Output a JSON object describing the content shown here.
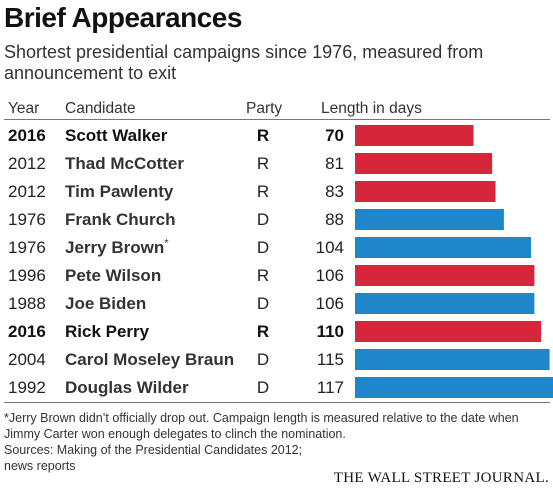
{
  "title": "Brief Appearances",
  "subtitle": "Shortest presidential campaigns since 1976, measured from announcement to exit",
  "headers": {
    "year": "Year",
    "candidate": "Candidate",
    "party": "Party",
    "length": "Length in days"
  },
  "colors": {
    "R": "#d6263b",
    "D": "#1f87c9"
  },
  "chart_data": {
    "type": "bar",
    "orientation": "horizontal",
    "categories": [
      "Scott Walker",
      "Thad McCotter",
      "Tim Pawlenty",
      "Frank Church",
      "Jerry Brown",
      "Pete Wilson",
      "Joe Biden",
      "Rick Perry",
      "Carol Moseley Braun",
      "Douglas Wilder"
    ],
    "values": [
      70,
      81,
      83,
      88,
      104,
      106,
      106,
      110,
      115,
      117
    ],
    "xlabel": "Length in days",
    "rows": [
      {
        "year": "2016",
        "candidate": "Scott Walker",
        "party": "R",
        "days": 70,
        "bold": true
      },
      {
        "year": "2012",
        "candidate": "Thad McCotter",
        "party": "R",
        "days": 81
      },
      {
        "year": "2012",
        "candidate": "Tim Pawlenty",
        "party": "R",
        "days": 83
      },
      {
        "year": "1976",
        "candidate": "Frank Church",
        "party": "D",
        "days": 88
      },
      {
        "year": "1976",
        "candidate": "Jerry Brown",
        "party": "D",
        "days": 104,
        "marker": "*"
      },
      {
        "year": "1996",
        "candidate": "Pete Wilson",
        "party": "R",
        "days": 106
      },
      {
        "year": "1988",
        "candidate": "Joe Biden",
        "party": "D",
        "days": 106
      },
      {
        "year": "2016",
        "candidate": "Rick Perry",
        "party": "R",
        "days": 110,
        "bold": true
      },
      {
        "year": "2004",
        "candidate": "Carol Moseley Braun",
        "party": "D",
        "days": 115
      },
      {
        "year": "1992",
        "candidate": "Douglas Wilder",
        "party": "D",
        "days": 117
      }
    ]
  },
  "footnote": "*Jerry Brown didn’t officially drop out. Campaign length is measured relative to the date when Jimmy Carter won enough delegates to clinch the nomination.",
  "sources": "Sources: Making of the Presidential Candidates 2012; news reports",
  "logo": "THE WALL STREET JOURNAL."
}
